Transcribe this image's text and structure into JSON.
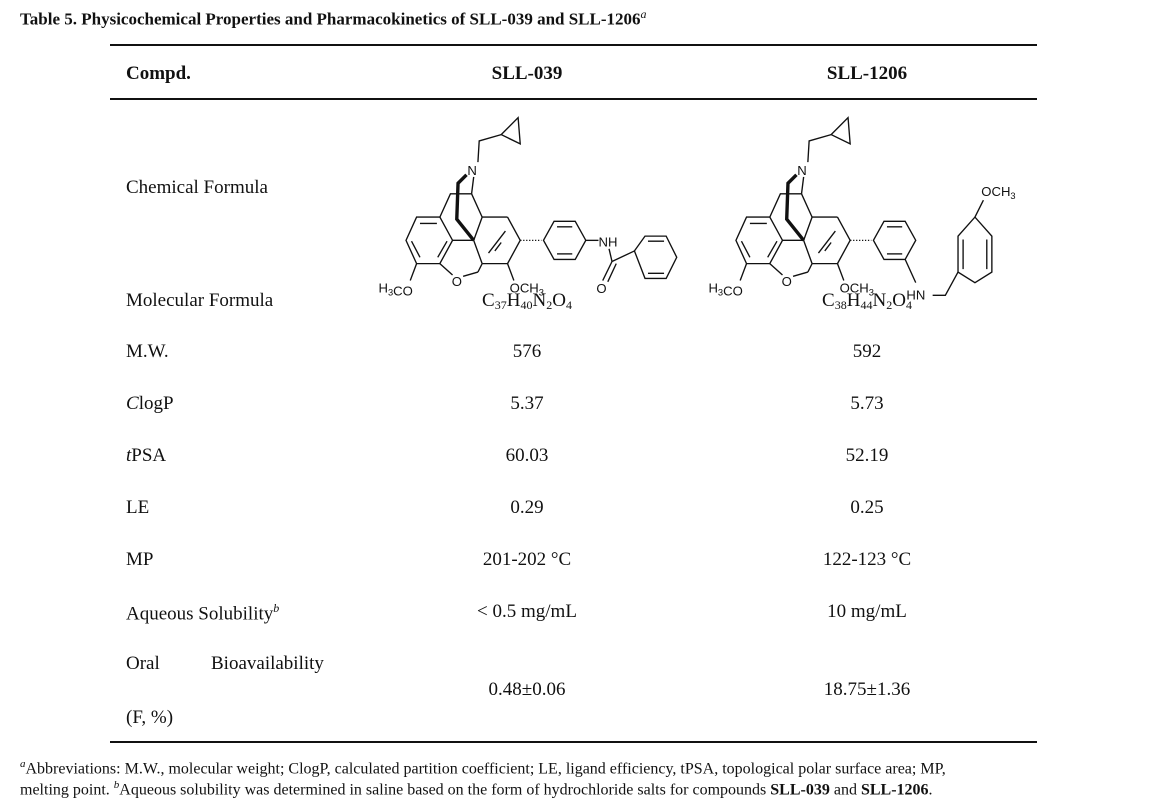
{
  "title": {
    "text": "Table 5. Physicochemical Properties and Pharmacokinetics of SLL-039 and SLL-1206",
    "footnote_mark": "a"
  },
  "header": {
    "col1": "Compd.",
    "col2": "SLL-039",
    "col3": "SLL-1206"
  },
  "structures": {
    "sll039": {
      "n": "N",
      "o": "O",
      "ome_left": "H3CO",
      "ome_right": "OCH3",
      "nh": "NH",
      "carbonyl_o": "O"
    },
    "sll1206": {
      "n": "N",
      "o": "O",
      "ome_left": "H3CO",
      "ome_right": "OCH3",
      "nh": "HN",
      "ome_para": "OCH3"
    }
  },
  "rows": [
    {
      "label": "Chemical Formula"
    },
    {
      "label": "Molecular Formula",
      "sll039": "C37H40N2O4",
      "sll1206": "C38H44N2O4"
    },
    {
      "label": "M.W.",
      "sll039": "576",
      "sll1206": "592"
    },
    {
      "label_italic": "C",
      "label": "logP",
      "sll039": "5.37",
      "sll1206": "5.73"
    },
    {
      "label_italic": "t",
      "label": "PSA",
      "sll039": "60.03",
      "sll1206": "52.19"
    },
    {
      "label": "LE",
      "sll039": "0.29",
      "sll1206": "0.25"
    },
    {
      "label": "MP",
      "sll039": "201-202 °C",
      "sll1206": "122-123 °C"
    },
    {
      "label": "Aqueous Solubility",
      "label_mark": "b",
      "sll039": "< 0.5 mg/mL",
      "sll1206": "10 mg/mL"
    },
    {
      "label_line1a": "Oral",
      "label_line1b": "Bioavailability",
      "label_line2": "(F, %)",
      "sll039": "0.48±0.06",
      "sll1206": "18.75±1.36"
    }
  ],
  "footnotes": {
    "a_mark": "a",
    "a_text": "Abbreviations: M.W., molecular weight; ClogP, calculated partition coefficient; LE, ligand efficiency, tPSA, topological polar surface area; MP,",
    "a_text_2": "melting point.",
    "b_mark": "b",
    "b_text": "Aqueous solubility was determined in saline based on the form of hydrochloride salts for compounds",
    "b_c1": "SLL-039",
    "b_and": "and",
    "b_c2": "SLL-1206",
    "b_end": "."
  }
}
